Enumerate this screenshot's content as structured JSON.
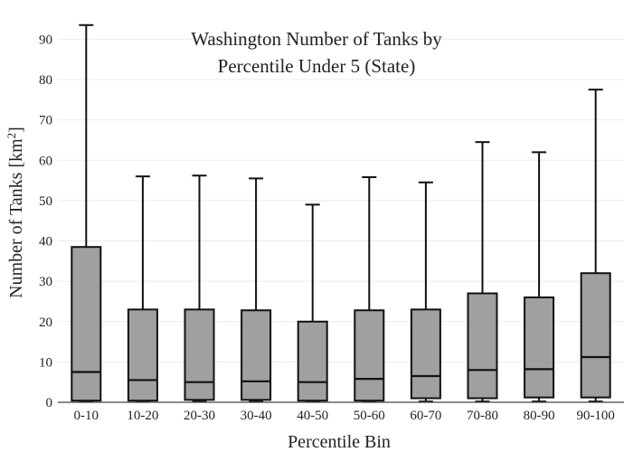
{
  "chart_data": {
    "type": "box",
    "title_lines": [
      "Washington Number of Tanks by",
      "Percentile Under 5 (State)"
    ],
    "xlabel": "Percentile Bin",
    "ylabel_main": "Number of Tanks  [km",
    "ylabel_sup": "2",
    "ylabel_end": "]",
    "ylim": [
      0,
      93
    ],
    "yticks": [
      0,
      10,
      20,
      30,
      40,
      50,
      60,
      70,
      80,
      90
    ],
    "grid": true,
    "categories": [
      "0-10",
      "10-20",
      "20-30",
      "30-40",
      "40-50",
      "50-60",
      "60-70",
      "70-80",
      "80-90",
      "90-100"
    ],
    "boxes": [
      {
        "min": 0.2,
        "q1": 0.4,
        "median": 7.5,
        "q3": 38.5,
        "max": 93.5
      },
      {
        "min": 0.2,
        "q1": 0.4,
        "median": 5.5,
        "q3": 23.0,
        "max": 56.0
      },
      {
        "min": 0.2,
        "q1": 0.6,
        "median": 5.0,
        "q3": 23.0,
        "max": 56.2
      },
      {
        "min": 0.2,
        "q1": 0.6,
        "median": 5.2,
        "q3": 22.8,
        "max": 55.5
      },
      {
        "min": 0.2,
        "q1": 0.4,
        "median": 5.0,
        "q3": 20.0,
        "max": 49.0
      },
      {
        "min": 0.2,
        "q1": 0.4,
        "median": 5.8,
        "q3": 22.8,
        "max": 55.8
      },
      {
        "min": 0.2,
        "q1": 1.0,
        "median": 6.5,
        "q3": 23.0,
        "max": 54.5
      },
      {
        "min": 0.2,
        "q1": 1.0,
        "median": 8.0,
        "q3": 27.0,
        "max": 64.5
      },
      {
        "min": 0.2,
        "q1": 1.2,
        "median": 8.2,
        "q3": 26.0,
        "max": 62.0
      },
      {
        "min": 0.2,
        "q1": 1.2,
        "median": 11.2,
        "q3": 32.0,
        "max": 77.5
      }
    ]
  }
}
